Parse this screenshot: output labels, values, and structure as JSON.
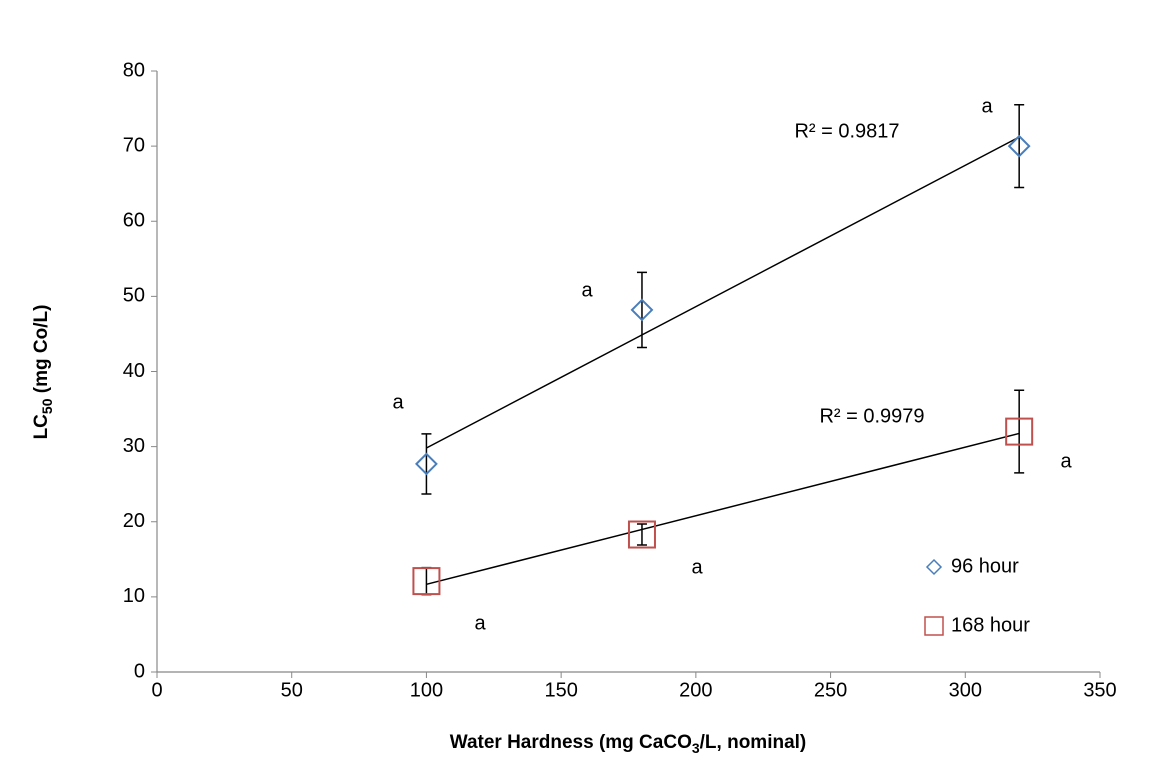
{
  "chart_data": {
    "type": "scatter",
    "xlabel_parts": [
      "Water Hardness (mg CaCO",
      "3",
      "/L, nominal)"
    ],
    "ylabel_parts": [
      "LC",
      "50",
      " (mg Co/L)"
    ],
    "xlim": [
      0,
      350
    ],
    "xticks": [
      0,
      50,
      100,
      150,
      200,
      250,
      300,
      350
    ],
    "ylim": [
      0,
      80
    ],
    "yticks": [
      0,
      10,
      20,
      30,
      40,
      50,
      60,
      70,
      80
    ],
    "grid": false,
    "legend": "lower right",
    "series": [
      {
        "name": "96 hour",
        "color": "#4a7ebb",
        "marker": "diamond",
        "x": [
          100,
          180,
          320
        ],
        "values": [
          27.7,
          48.2,
          70
        ],
        "errors": [
          4,
          5,
          5.5
        ],
        "trendline": true,
        "trendline_label": "R² = 0.9817"
      },
      {
        "name": "168 hour",
        "color": "#c0504d",
        "marker": "square",
        "x": [
          100,
          180,
          320
        ],
        "values": [
          12.1,
          18.3,
          32
        ],
        "errors": [
          1.8,
          1.4,
          5.5
        ],
        "trendline": true,
        "trendline_label": "R² = 0.9979"
      }
    ],
    "annotations": [
      "a",
      "a",
      "a",
      "a",
      "a",
      "a"
    ]
  }
}
